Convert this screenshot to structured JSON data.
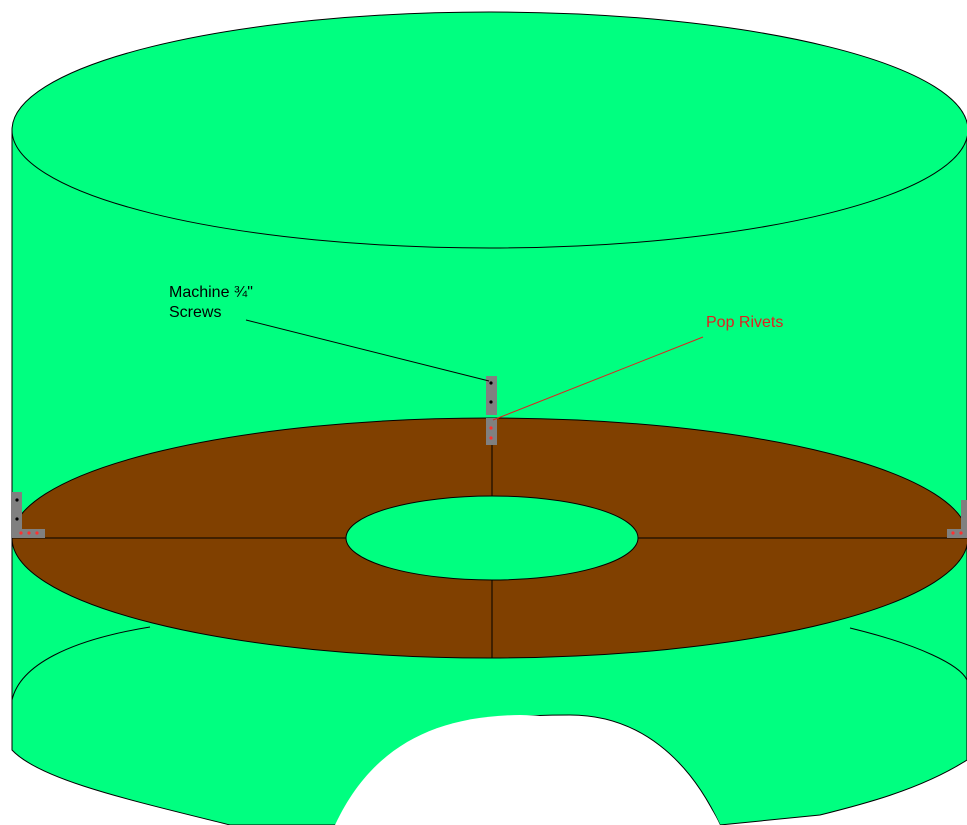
{
  "colors": {
    "background": "#ffffff",
    "drum": "#00ff80",
    "shelf": "#804000",
    "outline": "#000000",
    "bracket": "#808080",
    "rivet": "#ff3030",
    "screw": "#000000",
    "red_label": "#e02020"
  },
  "labels": {
    "screws_line1": "Machine ¾\"",
    "screws_line2": "Screws",
    "rivets": "Pop Rivets"
  }
}
